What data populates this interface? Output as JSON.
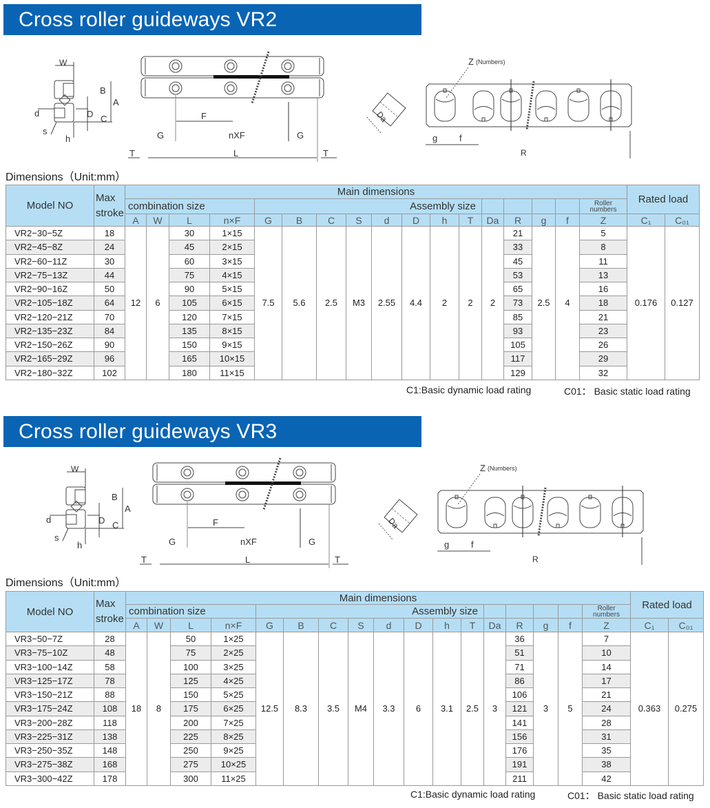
{
  "sections": [
    {
      "title": "Cross roller guideways  VR2",
      "dimensions_label": "Dimensions（Unit:mm）",
      "diagram_labels": {
        "W": "W",
        "B": "B",
        "A": "A",
        "D": "D",
        "C": "C",
        "d": "d",
        "s": "s",
        "h": "h",
        "F": "F",
        "G": "G",
        "nXF": "nXF",
        "T": "T",
        "L": "L",
        "Z": "Z",
        "Z_numbers": "(Numbers)",
        "Da": "Da",
        "g": "g",
        "f": "f",
        "R": "R"
      },
      "header": {
        "model_no": "Model NO",
        "max_stroke_1": "Max",
        "max_stroke_2": "stroke",
        "main_dimensions": "Main dimensions",
        "combination_size": "combination size",
        "assembly_size": "Assembly size",
        "roller_numbers_1": "Roller",
        "roller_numbers_2": "numbers",
        "rated_load": "Rated load",
        "columns": [
          "A",
          "W",
          "L",
          "n×F",
          "G",
          "B",
          "C",
          "S",
          "d",
          "D",
          "h",
          "T",
          "Da",
          "R",
          "g",
          "f",
          "Z",
          "C₁",
          "C₀₁"
        ]
      },
      "common": {
        "A": "12",
        "W": "6",
        "G": "7.5",
        "B": "5.6",
        "C": "2.5",
        "S": "M3",
        "d": "2.55",
        "D": "4.4",
        "h": "2",
        "T": "2",
        "Da": "2",
        "g": "2.5",
        "f": "4",
        "C1": "0.176",
        "C01": "0.127"
      },
      "rows": [
        {
          "model": "VR2−30−5Z",
          "stroke": "18",
          "L": "30",
          "nxF": "1×15",
          "R": "21",
          "Z": "5"
        },
        {
          "model": "VR2−45−8Z",
          "stroke": "24",
          "L": "45",
          "nxF": "2×15",
          "R": "33",
          "Z": "8"
        },
        {
          "model": "VR2−60−11Z",
          "stroke": "30",
          "L": "60",
          "nxF": "3×15",
          "R": "45",
          "Z": "11"
        },
        {
          "model": "VR2−75−13Z",
          "stroke": "44",
          "L": "75",
          "nxF": "4×15",
          "R": "53",
          "Z": "13"
        },
        {
          "model": "VR2−90−16Z",
          "stroke": "50",
          "L": "90",
          "nxF": "5×15",
          "R": "65",
          "Z": "16"
        },
        {
          "model": "VR2−105−18Z",
          "stroke": "64",
          "L": "105",
          "nxF": "6×15",
          "R": "73",
          "Z": "18"
        },
        {
          "model": "VR2−120−21Z",
          "stroke": "70",
          "L": "120",
          "nxF": "7×15",
          "R": "85",
          "Z": "21"
        },
        {
          "model": "VR2−135−23Z",
          "stroke": "84",
          "L": "135",
          "nxF": "8×15",
          "R": "93",
          "Z": "23"
        },
        {
          "model": "VR2−150−26Z",
          "stroke": "90",
          "L": "150",
          "nxF": "9×15",
          "R": "105",
          "Z": "26"
        },
        {
          "model": "VR2−165−29Z",
          "stroke": "96",
          "L": "165",
          "nxF": "10×15",
          "R": "117",
          "Z": "29"
        },
        {
          "model": "VR2−180−32Z",
          "stroke": "102",
          "L": "180",
          "nxF": "11×15",
          "R": "129",
          "Z": "32"
        }
      ],
      "notes": {
        "c1": "C1:Basic dynamic load rating",
        "c01": "C01： Basic static load rating"
      }
    },
    {
      "title": "Cross roller guideways  VR3",
      "dimensions_label": "Dimensions（Unit:mm）",
      "diagram_labels": {
        "W": "W",
        "B": "B",
        "A": "A",
        "D": "D",
        "C": "C",
        "d": "d",
        "s": "s",
        "h": "h",
        "F": "F",
        "G": "G",
        "nXF": "nXF",
        "T": "T",
        "L": "L",
        "Z": "Z",
        "Z_numbers": "(Numbers)",
        "Da": "Da",
        "g": "g",
        "f": "f",
        "R": "R"
      },
      "header": {
        "model_no": "Model NO",
        "max_stroke_1": "Max",
        "max_stroke_2": "stroke",
        "main_dimensions": "Main dimensions",
        "combination_size": "combination size",
        "assembly_size": "Assembly size",
        "roller_numbers_1": "Roller",
        "roller_numbers_2": "numbers",
        "rated_load": "Rated load",
        "columns": [
          "A",
          "W",
          "L",
          "n×F",
          "G",
          "B",
          "C",
          "S",
          "d",
          "D",
          "h",
          "T",
          "Da",
          "R",
          "g",
          "f",
          "Z",
          "C₁",
          "C₀₁"
        ]
      },
      "common": {
        "A": "18",
        "W": "8",
        "G": "12.5",
        "B": "8.3",
        "C": "3.5",
        "S": "M4",
        "d": "3.3",
        "D": "6",
        "h": "3.1",
        "T": "2.5",
        "Da": "3",
        "g": "3",
        "f": "5",
        "C1": "0.363",
        "C01": "0.275"
      },
      "rows": [
        {
          "model": "VR3−50−7Z",
          "stroke": "28",
          "L": "50",
          "nxF": "1×25",
          "R": "36",
          "Z": "7"
        },
        {
          "model": "VR3−75−10Z",
          "stroke": "48",
          "L": "75",
          "nxF": "2×25",
          "R": "51",
          "Z": "10"
        },
        {
          "model": "VR3−100−14Z",
          "stroke": "58",
          "L": "100",
          "nxF": "3×25",
          "R": "71",
          "Z": "14"
        },
        {
          "model": "VR3−125−17Z",
          "stroke": "78",
          "L": "125",
          "nxF": "4×25",
          "R": "86",
          "Z": "17"
        },
        {
          "model": "VR3−150−21Z",
          "stroke": "88",
          "L": "150",
          "nxF": "5×25",
          "R": "106",
          "Z": "21"
        },
        {
          "model": "VR3−175−24Z",
          "stroke": "108",
          "L": "175",
          "nxF": "6×25",
          "R": "121",
          "Z": "24"
        },
        {
          "model": "VR3−200−28Z",
          "stroke": "118",
          "L": "200",
          "nxF": "7×25",
          "R": "141",
          "Z": "28"
        },
        {
          "model": "VR3−225−31Z",
          "stroke": "138",
          "L": "225",
          "nxF": "8×25",
          "R": "156",
          "Z": "31"
        },
        {
          "model": "VR3−250−35Z",
          "stroke": "148",
          "L": "250",
          "nxF": "9×25",
          "R": "176",
          "Z": "35"
        },
        {
          "model": "VR3−275−38Z",
          "stroke": "168",
          "L": "275",
          "nxF": "10×25",
          "R": "191",
          "Z": "38"
        },
        {
          "model": "VR3−300−42Z",
          "stroke": "178",
          "L": "300",
          "nxF": "11×25",
          "R": "211",
          "Z": "42"
        }
      ],
      "notes": {
        "c1": "C1:Basic dynamic load rating",
        "c01": "C01： Basic static load rating"
      }
    }
  ],
  "colors": {
    "banner": "#0a64b4",
    "header_bg": "#b5def5",
    "alt_row": "#ececec"
  }
}
